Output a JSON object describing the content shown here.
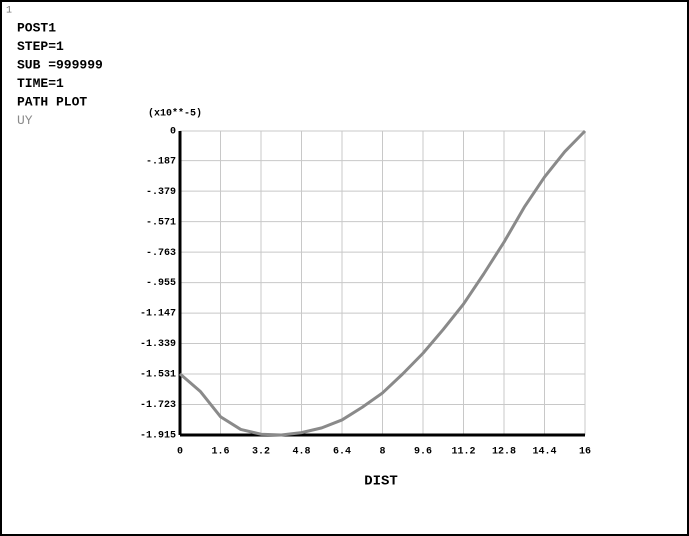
{
  "chart_data": {
    "type": "line",
    "window_number": "1",
    "header_lines": [
      "POST1",
      "STEP=1",
      "SUB =999999",
      "TIME=1",
      "PATH PLOT"
    ],
    "y_multiplier": "(x10**-5)",
    "xlabel": "DIST",
    "x": [
      0,
      0.8,
      1.6,
      2.4,
      3.2,
      4.0,
      4.8,
      5.6,
      6.4,
      7.2,
      8.0,
      8.8,
      9.6,
      10.4,
      11.2,
      12.0,
      12.8,
      13.6,
      14.4,
      15.2,
      16.0
    ],
    "series": [
      {
        "name": "UY",
        "color": "#8a8a8a",
        "values": [
          -1.53,
          -1.64,
          -1.8,
          -1.88,
          -1.91,
          -1.915,
          -1.9,
          -1.87,
          -1.82,
          -1.74,
          -1.65,
          -1.53,
          -1.4,
          -1.25,
          -1.09,
          -0.9,
          -0.7,
          -0.48,
          -0.29,
          -0.13,
          0
        ]
      }
    ],
    "xlim": [
      0,
      16
    ],
    "xticks": [
      0,
      1.6,
      3.2,
      4.8,
      6.4,
      8,
      9.6,
      11.2,
      12.8,
      14.4,
      16
    ],
    "ylim": [
      -1.915,
      0
    ],
    "yticks": [
      0,
      {
        "value": -0.187,
        "label": "-.187"
      },
      {
        "value": -0.379,
        "label": "-.379"
      },
      {
        "value": -0.571,
        "label": "-.571"
      },
      {
        "value": -0.763,
        "label": "-.763"
      },
      {
        "value": -0.955,
        "label": "-.955"
      },
      -1.147,
      -1.339,
      -1.531,
      -1.723,
      -1.915
    ],
    "grid": true
  }
}
